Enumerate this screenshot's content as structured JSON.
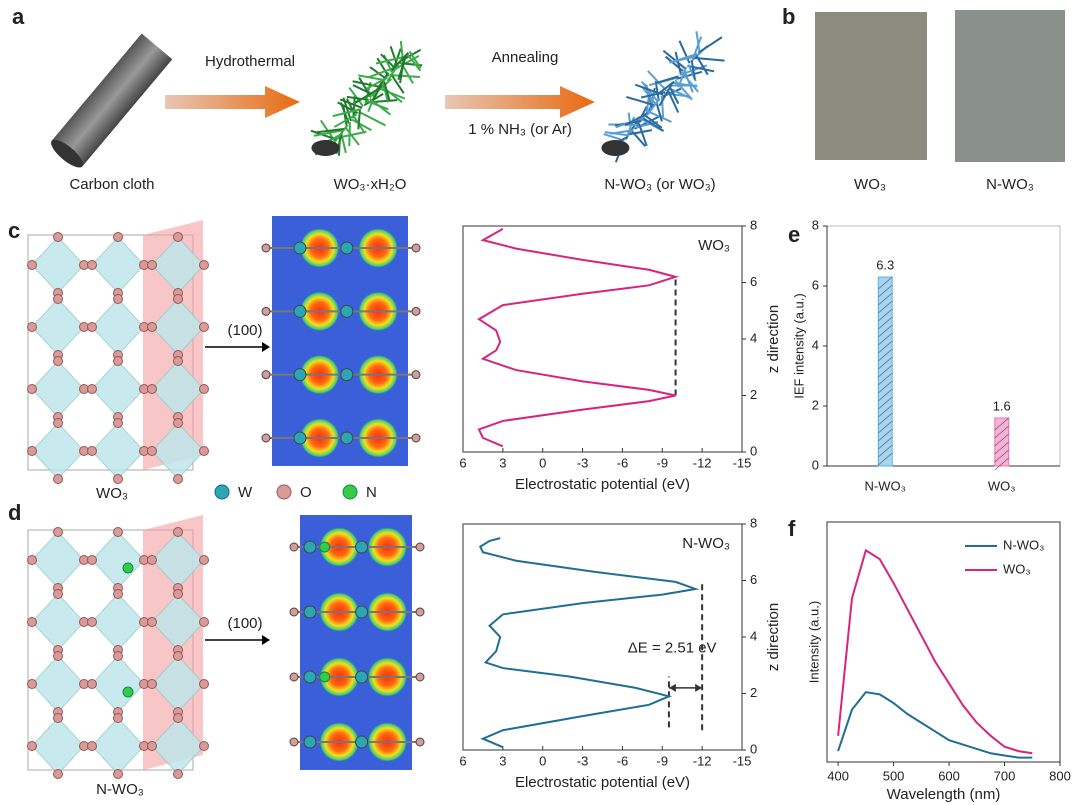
{
  "panel_labels": [
    "a",
    "b",
    "c",
    "d",
    "e",
    "f"
  ],
  "schematic": {
    "steps": [
      "Hydrothermal",
      "Annealing"
    ],
    "condition": "1 % NH₃ (or Ar)",
    "materials": [
      "Carbon cloth",
      "WO₃·xH₂O",
      "N-WO₃ (or WO₃)"
    ]
  },
  "photos": [
    "WO₃",
    "N-WO₃"
  ],
  "structures": {
    "labels": [
      "WO₃",
      "N-WO₃"
    ],
    "plane": "(100)",
    "legend": [
      "W",
      "O",
      "N"
    ]
  },
  "chart_data": [
    {
      "type": "profile",
      "xlabel": "Electrostatic potential (eV)",
      "ylabel": "z direction",
      "xlim": [
        6,
        -15
      ],
      "xticks": [
        6,
        3,
        0,
        -3,
        -6,
        -9,
        -12,
        -15
      ],
      "ylim": [
        0,
        8
      ],
      "yticks": [
        0,
        2,
        4,
        6,
        8
      ],
      "series": [
        {
          "name": "WO₃",
          "color": "#d6247f",
          "x": [
            3,
            4.5,
            4.8,
            3,
            -3,
            -8,
            -10,
            -8,
            -3,
            2,
            4.5,
            3.5,
            3.2,
            3.5,
            4.8,
            3,
            -3,
            -8,
            -10,
            -8,
            -3,
            2,
            4.5,
            3
          ],
          "values": [
            0.2,
            0.5,
            0.8,
            1.1,
            1.5,
            1.8,
            2.0,
            2.2,
            2.5,
            2.9,
            3.3,
            3.6,
            3.9,
            4.3,
            4.7,
            5.2,
            5.6,
            5.9,
            6.2,
            6.45,
            6.8,
            7.2,
            7.5,
            7.9
          ]
        }
      ],
      "reference_lines": [
        {
          "x": -10,
          "y": [
            2.0,
            6.2
          ]
        }
      ]
    },
    {
      "type": "profile",
      "xlabel": "Electrostatic potential (eV)",
      "ylabel": "z direction",
      "xlim": [
        6,
        -15
      ],
      "xticks": [
        6,
        3,
        0,
        -3,
        -6,
        -9,
        -12,
        -15
      ],
      "ylim": [
        0,
        8
      ],
      "yticks": [
        0,
        2,
        4,
        6,
        8
      ],
      "series": [
        {
          "name": "N-WO₃",
          "color": "#1f6e94",
          "x": [
            3,
            4.5,
            3,
            -3,
            -8,
            -9.5,
            -7,
            -2,
            3,
            4.3,
            3.5,
            3.2,
            4,
            3,
            -3,
            -9,
            -11.5,
            -10,
            -4,
            2,
            4.5,
            4.7,
            4,
            3.2
          ],
          "values": [
            0.1,
            0.4,
            0.7,
            1.2,
            1.6,
            1.9,
            2.2,
            2.6,
            2.9,
            3.1,
            3.5,
            4.0,
            4.4,
            4.8,
            5.2,
            5.5,
            5.7,
            5.95,
            6.3,
            6.7,
            7.0,
            7.2,
            7.4,
            7.5
          ]
        }
      ],
      "reference_lines": [
        {
          "x": -9.5,
          "y": [
            0.8,
            2.6
          ]
        },
        {
          "x": -12,
          "y": [
            0.7,
            6.0
          ]
        }
      ],
      "annotation": {
        "text": "ΔE = 2.51 eV",
        "arrow_x": [
          -9.5,
          -12
        ],
        "arrow_y": 2.2
      }
    },
    {
      "type": "bar",
      "ylabel": "IEF intensity (a.u.)",
      "categories": [
        "N-WO₃",
        "WO₃"
      ],
      "values": [
        6.3,
        1.6
      ],
      "colors": [
        "#5ab4e8",
        "#f06fb8"
      ],
      "label_colors": [
        "#1f6e94",
        "#d6247f"
      ],
      "ylim": [
        0,
        8
      ],
      "yticks": [
        0,
        2,
        4,
        6,
        8
      ]
    },
    {
      "type": "line",
      "xlabel": "Wavelength (nm)",
      "ylabel": "Intensity (a.u.)",
      "x": [
        400,
        425,
        450,
        475,
        500,
        525,
        550,
        575,
        600,
        625,
        650,
        675,
        700,
        725,
        750
      ],
      "xlim": [
        380,
        800
      ],
      "xticks": [
        400,
        500,
        600,
        700,
        800
      ],
      "ylim": [
        0,
        1.1
      ],
      "series": [
        {
          "name": "N-WO₃",
          "color": "#1f6e94",
          "values": [
            0.05,
            0.24,
            0.32,
            0.31,
            0.27,
            0.22,
            0.18,
            0.14,
            0.1,
            0.08,
            0.06,
            0.04,
            0.03,
            0.02,
            0.02
          ]
        },
        {
          "name": "WO₃",
          "color": "#d6247f",
          "values": [
            0.12,
            0.75,
            0.97,
            0.93,
            0.82,
            0.7,
            0.58,
            0.46,
            0.36,
            0.26,
            0.18,
            0.12,
            0.07,
            0.05,
            0.04
          ]
        }
      ],
      "legend": "upper right"
    }
  ]
}
